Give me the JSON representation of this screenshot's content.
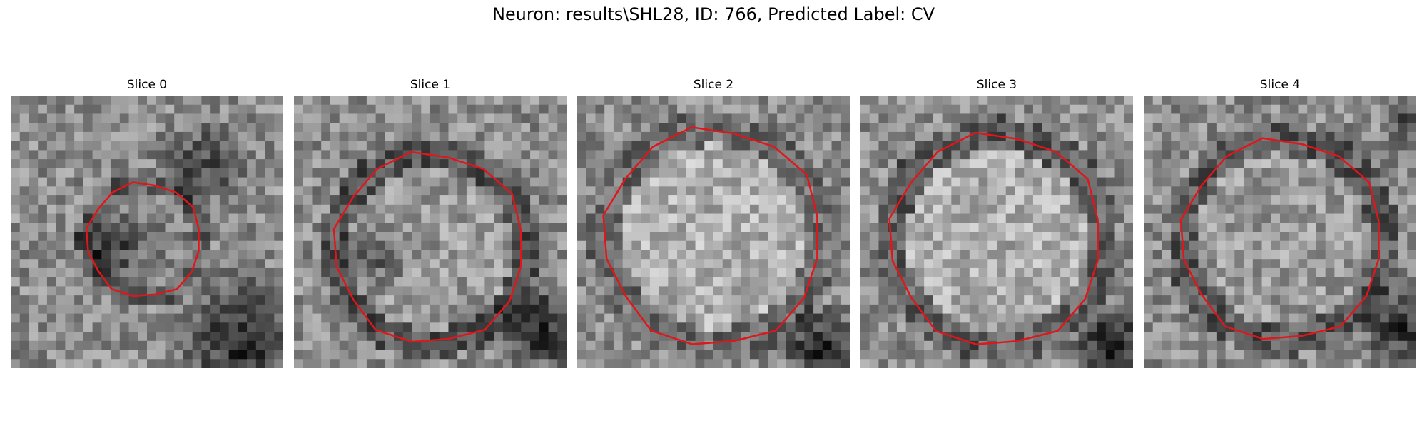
{
  "figure": {
    "title": "Neuron: results\\SHL28, ID: 766, Predicted Label: CV"
  },
  "panels": [
    {
      "title": "Slice 0"
    },
    {
      "title": "Slice 1"
    },
    {
      "title": "Slice 2"
    },
    {
      "title": "Slice 3"
    },
    {
      "title": "Slice 4"
    }
  ],
  "colors": {
    "contour": "#e0161b"
  }
}
